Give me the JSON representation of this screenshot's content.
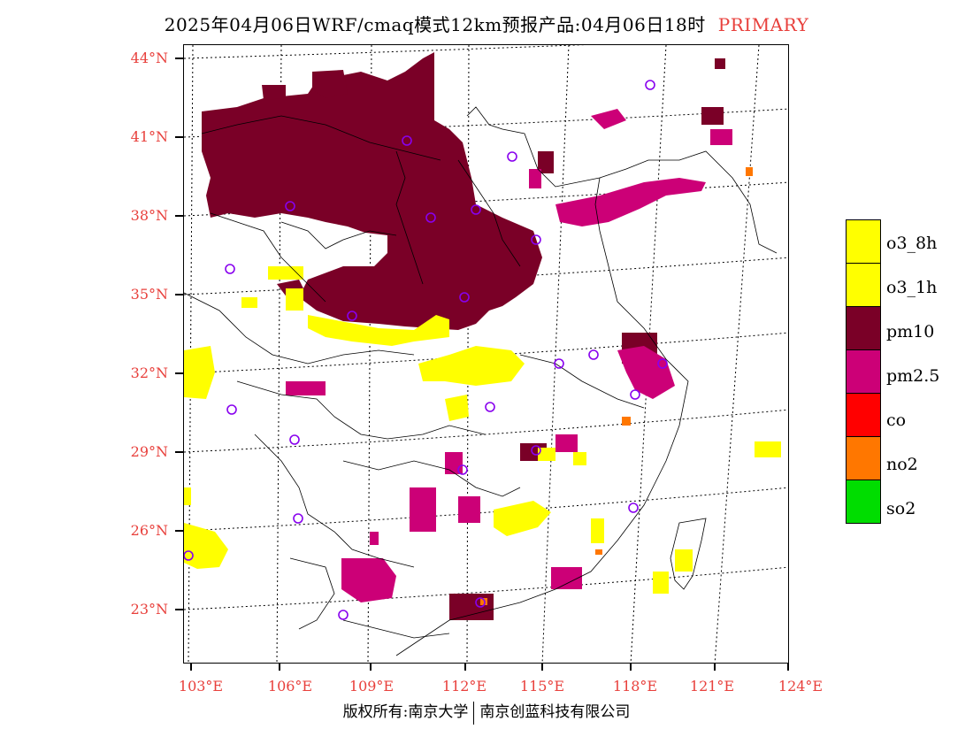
{
  "title": {
    "main": "2025年04月06日WRF/cmaq模式12km预报产品:04月06日18时",
    "tag": "PRIMARY"
  },
  "axes": {
    "lat_labels": [
      "44°N",
      "41°N",
      "38°N",
      "35°N",
      "32°N",
      "29°N",
      "26°N",
      "23°N"
    ],
    "lon_labels": [
      "103°E",
      "106°E",
      "109°E",
      "112°E",
      "115°E",
      "118°E",
      "121°E",
      "124°E"
    ]
  },
  "legend": {
    "items": [
      {
        "label": "o3_8h",
        "color": "#ffff00"
      },
      {
        "label": "o3_1h",
        "color": "#ffff00"
      },
      {
        "label": "pm10",
        "color": "#7a0027"
      },
      {
        "label": "pm2.5",
        "color": "#cc0077"
      },
      {
        "label": "co",
        "color": "#ff0000"
      },
      {
        "label": "no2",
        "color": "#ff7700"
      },
      {
        "label": "so2",
        "color": "#00dd00"
      }
    ]
  },
  "footer": {
    "left": "版权所有:南京大学",
    "right": "南京创蓝科技有限公司"
  },
  "colors": {
    "axis_label": "#e8403c",
    "pm10": "#7a0027",
    "pm25": "#cc0077",
    "o3": "#ffff00",
    "no2": "#ff7700",
    "station_marker": "#8800ee"
  }
}
